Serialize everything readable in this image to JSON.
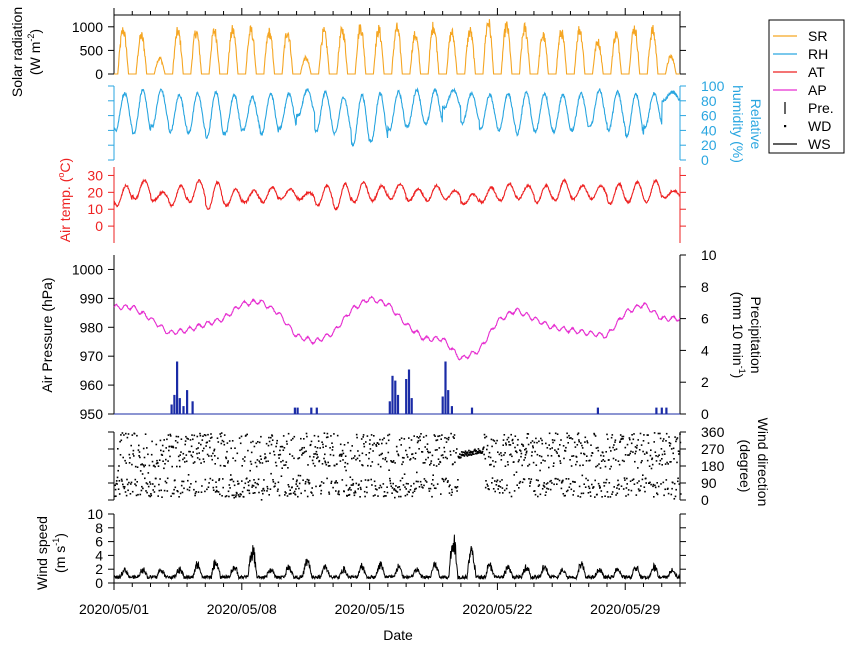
{
  "chart_data": {
    "type": "multi-panel time series",
    "x_axis": {
      "label": "Date",
      "range": [
        "2020/05/01",
        "2020/06/01"
      ],
      "tick_labels": [
        "2020/05/01",
        "2020/05/08",
        "2020/05/15",
        "2020/05/22",
        "2020/05/29"
      ],
      "tick_dates": [
        "2020-05-01",
        "2020-05-08",
        "2020-05-15",
        "2020-05-22",
        "2020-05-29"
      ]
    },
    "legend": {
      "placement": "right, outside top",
      "entries": [
        {
          "label": "SR",
          "color": "#f5a623",
          "style": "line"
        },
        {
          "label": "RH",
          "color": "#2aa6e0",
          "style": "line"
        },
        {
          "label": "AT",
          "color": "#ee2222",
          "style": "line"
        },
        {
          "label": "AP",
          "color": "#e62ed0",
          "style": "line"
        },
        {
          "label": "Pre.",
          "color": "#000000",
          "style": "bar"
        },
        {
          "label": "WD",
          "color": "#000000",
          "style": "dot"
        },
        {
          "label": "WS",
          "color": "#000000",
          "style": "line"
        }
      ]
    },
    "panels": {
      "solar": {
        "ylabel_line1": "Solar radiation",
        "ylabel_line2": "(W m",
        "ylabel_sup": "-2",
        "ylabel_end": ")",
        "ylim": [
          0,
          1250
        ],
        "ticks": [
          "0",
          "500",
          "1000"
        ],
        "tick_values": [
          0,
          500,
          1000
        ],
        "color": "#f5a623",
        "daily_peak": [
          1050,
          920,
          380,
          1020,
          1010,
          1040,
          1050,
          1050,
          1000,
          1020,
          380,
          1000,
          1050,
          1130,
          1060,
          1100,
          940,
          1150,
          1000,
          1030,
          1250,
          1150,
          1100,
          930,
          1000,
          1080,
          780,
          950,
          1100,
          1050,
          420
        ]
      },
      "humidity": {
        "ylabel_line1": "Relative",
        "ylabel_line2": "humidity (%)",
        "ylim": [
          0,
          100
        ],
        "ticks": [
          "0",
          "20",
          "40",
          "60",
          "80",
          "100"
        ],
        "tick_values": [
          0,
          20,
          40,
          60,
          80,
          100
        ],
        "color": "#2aa6e0",
        "daily_min": [
          40,
          35,
          45,
          38,
          36,
          30,
          35,
          40,
          35,
          42,
          60,
          38,
          35,
          20,
          25,
          40,
          45,
          48,
          70,
          50,
          42,
          40,
          35,
          38,
          38,
          40,
          45,
          40,
          32,
          45,
          80
        ],
        "daily_max": [
          90,
          95,
          95,
          88,
          90,
          92,
          88,
          85,
          90,
          90,
          95,
          92,
          85,
          88,
          90,
          92,
          95,
          95,
          95,
          90,
          88,
          90,
          92,
          90,
          88,
          90,
          95,
          92,
          90,
          90,
          92
        ]
      },
      "temperature": {
        "ylabel": "Air temp. (",
        "ylabel_sup": "o",
        "ylabel_end": "C)",
        "ylim": [
          -10,
          35
        ],
        "ticks": [
          "0",
          "10",
          "20",
          "30"
        ],
        "tick_values": [
          0,
          10,
          20,
          30
        ],
        "color": "#ee2222",
        "daily_min": [
          12,
          16,
          15,
          12,
          14,
          10,
          12,
          14,
          14,
          16,
          16,
          12,
          10,
          14,
          15,
          16,
          15,
          15,
          16,
          13,
          14,
          15,
          16,
          14,
          15,
          16,
          16,
          13,
          14,
          14,
          17
        ],
        "daily_max": [
          24,
          27,
          20,
          24,
          27,
          26,
          22,
          21,
          23,
          22,
          20,
          24,
          25,
          26,
          24,
          25,
          22,
          24,
          21,
          19,
          23,
          25,
          24,
          24,
          27,
          24,
          24,
          25,
          26,
          27,
          21
        ]
      },
      "pressure": {
        "ylabel": "Air Pressure (hPa)",
        "ylim": [
          950,
          1005
        ],
        "ticks": [
          "950",
          "960",
          "970",
          "980",
          "990",
          "1000"
        ],
        "tick_values": [
          950,
          960,
          970,
          980,
          990,
          1000
        ],
        "color": "#e62ed0",
        "daily_values": [
          987,
          987,
          983,
          978,
          979,
          981,
          983,
          988,
          989,
          985,
          977,
          975,
          978,
          986,
          990,
          988,
          981,
          976,
          976,
          969,
          972,
          982,
          986,
          983,
          980,
          979,
          978,
          977,
          985,
          988,
          983
        ]
      },
      "precipitation": {
        "ylabel_line1": "Precipitation",
        "ylabel_line2": "(mm 10 min",
        "ylabel_sup": "-1",
        "ylabel_end": ")",
        "ylim": [
          0,
          10
        ],
        "ticks": [
          "0",
          "2",
          "4",
          "6",
          "8",
          "10"
        ],
        "tick_values": [
          0,
          2,
          4,
          6,
          8,
          10
        ],
        "color": "#1a2ba6",
        "events": [
          {
            "day": 3.15,
            "value": 0.6
          },
          {
            "day": 3.3,
            "value": 1.2
          },
          {
            "day": 3.45,
            "value": 3.3
          },
          {
            "day": 3.6,
            "value": 1.0
          },
          {
            "day": 3.8,
            "value": 0.5
          },
          {
            "day": 4.0,
            "value": 1.5
          },
          {
            "day": 4.3,
            "value": 0.8
          },
          {
            "day": 9.9,
            "value": 0.4
          },
          {
            "day": 10.05,
            "value": 0.4
          },
          {
            "day": 10.8,
            "value": 0.4
          },
          {
            "day": 11.1,
            "value": 0.4
          },
          {
            "day": 15.1,
            "value": 0.8
          },
          {
            "day": 15.25,
            "value": 2.4
          },
          {
            "day": 15.4,
            "value": 2.1
          },
          {
            "day": 15.55,
            "value": 1.2
          },
          {
            "day": 16.0,
            "value": 2.2
          },
          {
            "day": 16.15,
            "value": 2.8
          },
          {
            "day": 16.3,
            "value": 1.0
          },
          {
            "day": 18.0,
            "value": 1.1
          },
          {
            "day": 18.15,
            "value": 3.3
          },
          {
            "day": 18.3,
            "value": 1.5
          },
          {
            "day": 18.5,
            "value": 0.5
          },
          {
            "day": 19.6,
            "value": 0.4
          },
          {
            "day": 26.5,
            "value": 0.4
          },
          {
            "day": 29.7,
            "value": 0.4
          },
          {
            "day": 30.0,
            "value": 0.4
          },
          {
            "day": 30.25,
            "value": 0.4
          }
        ]
      },
      "wind_direction": {
        "ylabel_line1": "Wind direction",
        "ylabel_line2": "(degree)",
        "ylim": [
          0,
          360
        ],
        "ticks": [
          "0",
          "90",
          "180",
          "270",
          "360"
        ],
        "tick_values": [
          0,
          90,
          180,
          270,
          360
        ],
        "color": "#000000"
      },
      "wind_speed": {
        "ylabel_line1": "Wind speed",
        "ylabel_line2": "(m s",
        "ylabel_sup": "-1",
        "ylabel_end": ")",
        "ylim": [
          0,
          10
        ],
        "ticks": [
          "0",
          "2",
          "4",
          "6",
          "8",
          "10"
        ],
        "tick_values": [
          0,
          2,
          4,
          6,
          8,
          10
        ],
        "color": "#000000",
        "daily_peak": [
          2.0,
          2.0,
          2.0,
          2.0,
          3.0,
          3.5,
          2.5,
          5.5,
          2.0,
          2.5,
          3.5,
          2.5,
          2.0,
          2.5,
          3.0,
          2.5,
          2.0,
          3.0,
          7.5,
          5.5,
          3.0,
          2.5,
          2.5,
          2.5,
          2.0,
          3.0,
          2.0,
          2.0,
          2.5,
          2.5,
          2.0
        ]
      }
    }
  }
}
